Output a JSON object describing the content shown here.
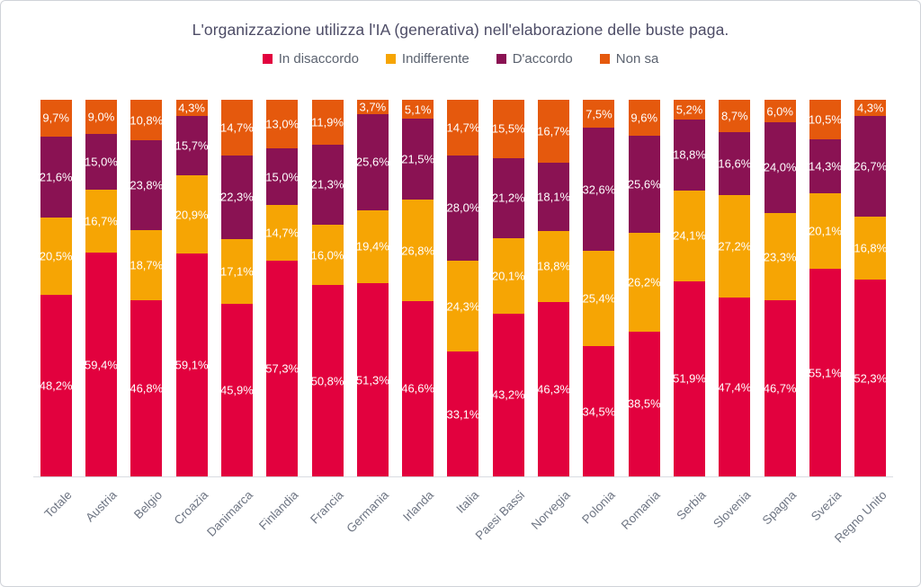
{
  "colors": {
    "card_background": "#ffffff",
    "card_border": "#d0d3d9",
    "title_text": "#4d4c66",
    "legend_text": "#5c6370",
    "axis_label_text": "#6e7583",
    "axis_line": "#d9dce1",
    "bar_label_text": "#ffffff"
  },
  "chart_data": {
    "type": "bar",
    "stacked": true,
    "percent": true,
    "title": "L'organizzazione utilizza l'IA (generativa) nell'elaborazione delle buste paga.",
    "xlabel": "",
    "ylabel": "",
    "ylim": [
      0,
      100
    ],
    "grid": false,
    "legend_position": "top",
    "value_suffix": "%",
    "decimal_separator": ",",
    "categories": [
      "Totale",
      "Austria",
      "Belgio",
      "Croazia",
      "Danimarca",
      "Finlandia",
      "Francia",
      "Germania",
      "Irlanda",
      "Italia",
      "Paesi Bassi",
      "Norvegia",
      "Polonia",
      "Romania",
      "Serbia",
      "Slovenia",
      "Spagna",
      "Svezia",
      "Regno Unito"
    ],
    "series": [
      {
        "name": "In disaccordo",
        "color": "#e2013e",
        "values": [
          48.2,
          59.4,
          46.8,
          59.1,
          45.9,
          57.3,
          50.8,
          51.3,
          46.6,
          33.1,
          43.2,
          46.3,
          34.5,
          38.5,
          51.9,
          47.4,
          46.7,
          55.1,
          52.3
        ]
      },
      {
        "name": "Indifferente",
        "color": "#f6a504",
        "values": [
          20.5,
          16.7,
          18.7,
          20.9,
          17.1,
          14.7,
          16.0,
          19.4,
          26.8,
          24.3,
          20.1,
          18.8,
          25.4,
          26.2,
          24.1,
          27.2,
          23.3,
          20.1,
          16.8
        ]
      },
      {
        "name": "D'accordo",
        "color": "#8a1253",
        "values": [
          21.6,
          15.0,
          23.8,
          15.7,
          22.3,
          15.0,
          21.3,
          25.6,
          21.5,
          28.0,
          21.2,
          18.1,
          32.6,
          25.6,
          18.8,
          16.6,
          24.0,
          14.3,
          26.7
        ]
      },
      {
        "name": "Non sa",
        "color": "#e5590d",
        "values": [
          9.7,
          9.0,
          10.8,
          4.3,
          14.7,
          13.0,
          11.9,
          3.7,
          5.1,
          14.7,
          15.5,
          16.7,
          7.5,
          9.6,
          5.2,
          8.7,
          6.0,
          10.5,
          4.3
        ]
      }
    ]
  }
}
